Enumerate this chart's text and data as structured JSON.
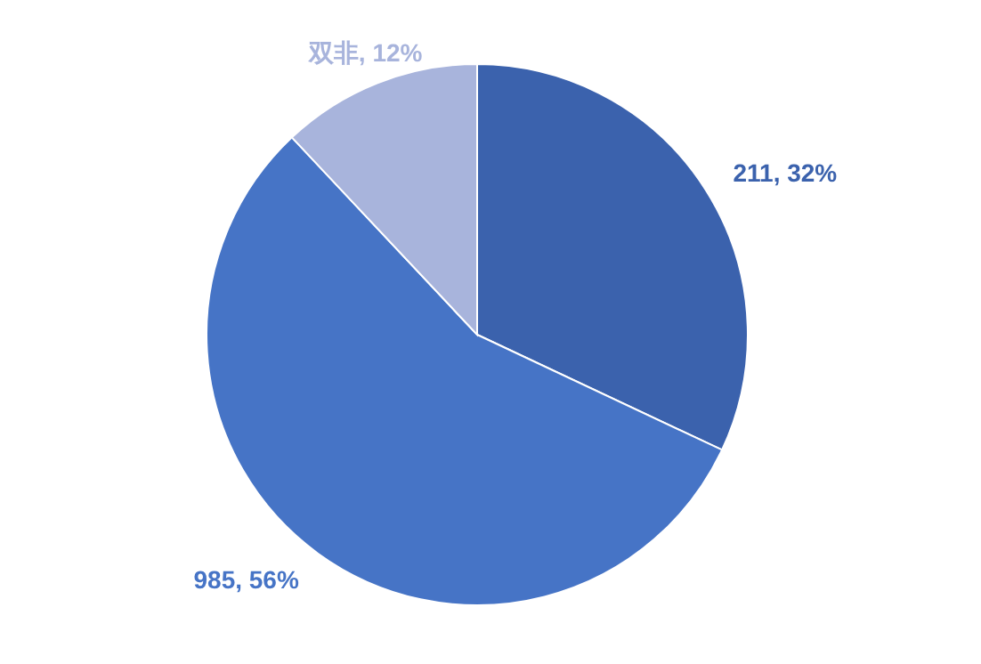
{
  "chart_data": {
    "type": "pie",
    "categories": [
      "211",
      "985",
      "双非"
    ],
    "values": [
      32,
      56,
      12
    ],
    "colors": [
      "#3b62ad",
      "#4674c6",
      "#a8b4dc"
    ],
    "value_labels": [
      ", 32%",
      ", 56%",
      ", 12%"
    ]
  }
}
